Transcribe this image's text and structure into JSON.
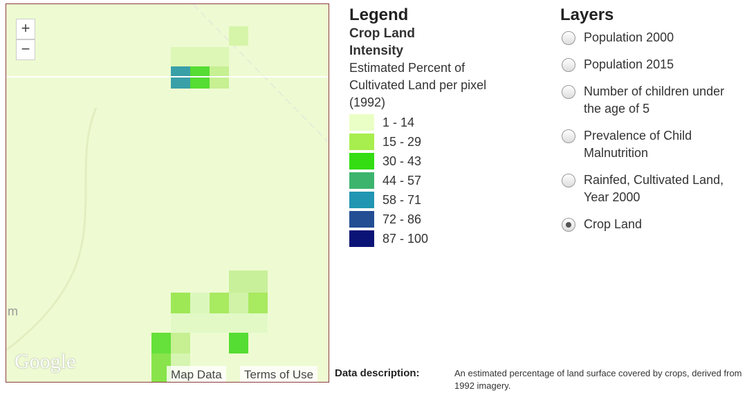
{
  "map": {
    "zoom_in": "+",
    "zoom_out": "−",
    "logo": "Google",
    "label": "m",
    "buttons": [
      "Map Data",
      "Terms of Use"
    ]
  },
  "legend": {
    "title": "Legend",
    "subtitle": "Crop Land Intensity",
    "description": "Estimated Percent of Cultivated Land per pixel (1992)",
    "items": [
      {
        "label": "1 - 14",
        "color": "#eaffc6"
      },
      {
        "label": "15 - 29",
        "color": "#a8ee4e"
      },
      {
        "label": "30 - 43",
        "color": "#33dd11"
      },
      {
        "label": "44 - 57",
        "color": "#3cb46e"
      },
      {
        "label": "58 - 71",
        "color": "#2196b2"
      },
      {
        "label": "72 - 86",
        "color": "#234e94"
      },
      {
        "label": "87 - 100",
        "color": "#0b1476"
      }
    ]
  },
  "layers": {
    "title": "Layers",
    "options": [
      {
        "label": "Population 2000",
        "selected": false
      },
      {
        "label": "Population 2015",
        "selected": false
      },
      {
        "label": "Number of children under the age of 5",
        "selected": false
      },
      {
        "label": "Prevalence of Child Malnutrition",
        "selected": false
      },
      {
        "label": "Rainfed, Cultivated Land, Year 2000",
        "selected": false
      },
      {
        "label": "Crop Land",
        "selected": true
      }
    ]
  },
  "data_description": {
    "label": "Data description:",
    "text": "An estimated percentage of land surface covered by crops, derived from 1992 imagery."
  }
}
